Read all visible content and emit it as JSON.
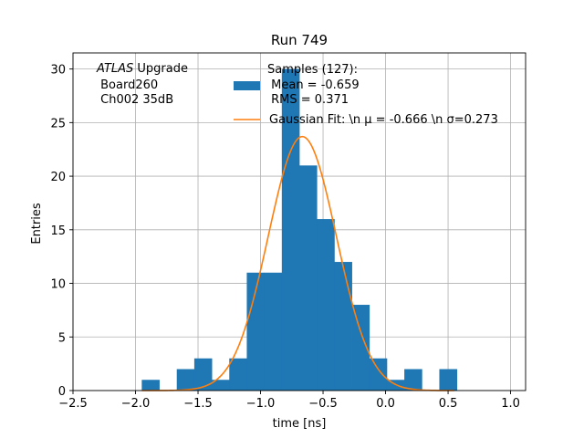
{
  "chart_data": {
    "type": "bar",
    "title": "Run 749",
    "xlabel": "time [ns]",
    "ylabel": "Entries",
    "xlim": [
      -2.5,
      1.12
    ],
    "ylim": [
      0,
      31.5
    ],
    "grid": true,
    "xticks": [
      -2.5,
      -2.0,
      -1.5,
      -1.0,
      -0.5,
      0.0,
      0.5,
      1.0
    ],
    "xtick_labels": [
      "−2.5",
      "−2.0",
      "−1.5",
      "−1.0",
      "−0.5",
      "0.0",
      "0.5",
      "1.0"
    ],
    "yticks": [
      0,
      5,
      10,
      15,
      20,
      25,
      30
    ],
    "ytick_labels": [
      "0",
      "5",
      "10",
      "15",
      "20",
      "25",
      "30"
    ],
    "histogram": {
      "name": "Samples (127)",
      "color": "#1f77b4",
      "bin_edges": [
        -1.95,
        -1.81,
        -1.67,
        -1.53,
        -1.39,
        -1.25,
        -1.11,
        -0.97,
        -0.83,
        -0.69,
        -0.55,
        -0.41,
        -0.27,
        -0.13,
        0.01,
        0.15,
        0.29,
        0.43,
        0.57
      ],
      "counts": [
        1,
        0,
        2,
        3,
        1,
        3,
        11,
        11,
        30,
        21,
        16,
        12,
        8,
        3,
        1,
        2,
        0,
        2
      ]
    },
    "fit": {
      "name": "Gaussian Fit",
      "color": "#ff7f0e",
      "type": "gaussian",
      "mu": -0.666,
      "sigma": 0.273,
      "amplitude": 23.7,
      "x_range": [
        -1.95,
        0.55
      ]
    },
    "legend": {
      "position": "top-right",
      "entries": [
        {
          "label_lines": [
            "Samples (127):",
            " Mean = -0.659",
            " RMS = 0.371"
          ]
        },
        {
          "label_lines": [
            "Gaussian Fit: \\n μ = -0.666 \\n σ=0.273"
          ]
        }
      ]
    },
    "annotation": {
      "italic_part": "ATLAS",
      "line1_rest": " Upgrade",
      "lines": [
        " Board260",
        " Ch002 35dB"
      ]
    }
  }
}
